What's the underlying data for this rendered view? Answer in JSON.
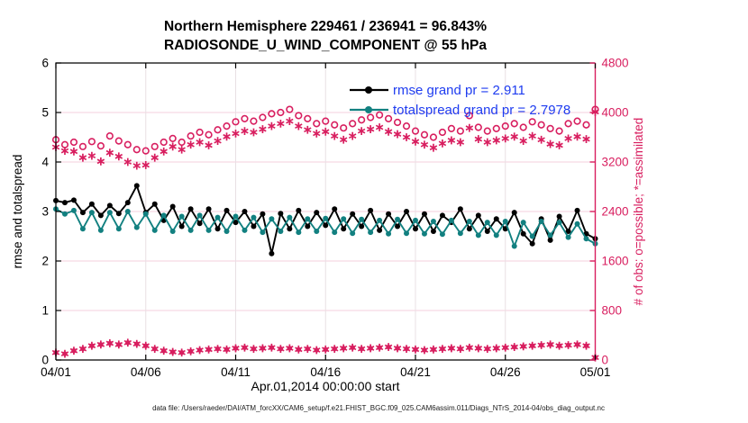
{
  "title": {
    "line1": "Northern Hemisphere 229461 / 236941 = 96.843%",
    "line2": "RADIOSONDE_U_WIND_COMPONENT @ 55 hPa"
  },
  "axes": {
    "x": {
      "label": "Apr.01,2014 00:00:00 start",
      "tick_labels": [
        "04/01",
        "04/06",
        "04/11",
        "04/16",
        "04/21",
        "04/26",
        "05/01"
      ],
      "tick_days": [
        0,
        5,
        10,
        15,
        20,
        25,
        30
      ],
      "range_days": [
        0,
        30
      ]
    },
    "y_left": {
      "label": "rmse and totalspread",
      "ticks": [
        0,
        1,
        2,
        3,
        4,
        5,
        6
      ],
      "range": [
        0,
        6
      ]
    },
    "y_right": {
      "label": "# of obs: o=possible; *=assimilated",
      "ticks": [
        0,
        800,
        1600,
        2400,
        3200,
        4000,
        4800
      ],
      "range": [
        0,
        4800
      ]
    }
  },
  "legend": [
    {
      "label": "rmse grand pr = 2.911",
      "color": "#000000"
    },
    {
      "label": "totalspread grand pr = 2.7978",
      "color": "#128080"
    }
  ],
  "footer": {
    "datafile": "data file: /Users/raeder/DAI/ATM_forcXX/CAM6_setup/f.e21.FHIST_BGC.f09_025.CAM6assim.011/Diags_NTrS_2014-04/obs_diag_output.nc"
  },
  "colors": {
    "rmse": "#000000",
    "totalspread": "#128080",
    "obs_pink": "#D81E5F",
    "legend_text": "#1E3CF0",
    "grid_h": "#F5CFDE",
    "grid_v": "#E9E0E4",
    "axis_black": "#000000",
    "tick_label_left": "#000000",
    "tick_label_right": "#D81E5F"
  },
  "chart_data": {
    "type": "line",
    "title_line1": "Northern Hemisphere 229461 / 236941 = 96.843%",
    "title_line2": "RADIOSONDE_U_WIND_COMPONENT @ 55 hPa",
    "xlabel": "Apr.01,2014 00:00:00 start",
    "ylabel_left": "rmse and totalspread",
    "ylabel_right": "# of obs: o=possible; *=assimilated",
    "x_range_days": [
      0,
      30
    ],
    "ylim_left": [
      0,
      6
    ],
    "ylim_right": [
      0,
      4800
    ],
    "grid": true,
    "legend_position": "upper-right-inside",
    "x_days": [
      0,
      0.5,
      1,
      1.5,
      2,
      2.5,
      3,
      3.5,
      4,
      4.5,
      5,
      5.5,
      6,
      6.5,
      7,
      7.5,
      8,
      8.5,
      9,
      9.5,
      10,
      10.5,
      11,
      11.5,
      12,
      12.5,
      13,
      13.5,
      14,
      14.5,
      15,
      15.5,
      16,
      16.5,
      17,
      17.5,
      18,
      18.5,
      19,
      19.5,
      20,
      20.5,
      21,
      21.5,
      22,
      22.5,
      23,
      23.5,
      24,
      24.5,
      25,
      25.5,
      26,
      26.5,
      27,
      27.5,
      28,
      28.5,
      29,
      29.5,
      30
    ],
    "series": [
      {
        "name": "rmse",
        "axis": "left",
        "line": true,
        "marker": "filled-circle",
        "color": "#000000",
        "grand_value": 2.911,
        "values": [
          3.22,
          3.18,
          3.23,
          2.98,
          3.15,
          2.92,
          3.12,
          2.96,
          3.18,
          3.52,
          2.98,
          3.15,
          2.82,
          3.1,
          2.7,
          3.05,
          2.76,
          3.05,
          2.65,
          3.02,
          2.78,
          3.0,
          2.7,
          2.95,
          2.15,
          2.96,
          2.65,
          3.02,
          2.7,
          2.98,
          2.72,
          3.05,
          2.65,
          2.95,
          2.7,
          3.02,
          2.62,
          2.95,
          2.7,
          3.0,
          2.65,
          2.95,
          2.6,
          2.92,
          2.78,
          3.05,
          2.65,
          2.92,
          2.6,
          2.85,
          2.65,
          2.98,
          2.55,
          2.35,
          2.85,
          2.42,
          2.9,
          2.6,
          3.02,
          2.55,
          2.45
        ]
      },
      {
        "name": "totalspread",
        "axis": "left",
        "line": true,
        "marker": "filled-circle",
        "color": "#128080",
        "grand_value": 2.7978,
        "values": [
          3.05,
          2.95,
          3.02,
          2.65,
          2.98,
          2.62,
          2.98,
          2.65,
          3.0,
          2.68,
          2.95,
          2.62,
          2.92,
          2.6,
          2.9,
          2.62,
          2.92,
          2.62,
          2.88,
          2.6,
          2.9,
          2.62,
          2.88,
          2.58,
          2.85,
          2.6,
          2.88,
          2.58,
          2.85,
          2.6,
          2.86,
          2.58,
          2.85,
          2.56,
          2.84,
          2.58,
          2.82,
          2.55,
          2.84,
          2.56,
          2.82,
          2.55,
          2.8,
          2.54,
          2.82,
          2.56,
          2.8,
          2.52,
          2.78,
          2.52,
          2.8,
          2.3,
          2.78,
          2.5,
          2.8,
          2.52,
          2.78,
          2.48,
          2.75,
          2.45,
          2.35
        ]
      },
      {
        "name": "num_obs_possible",
        "axis": "right",
        "line": false,
        "marker": "open-circle",
        "color": "#D81E5F",
        "values": [
          3560,
          3480,
          3520,
          3450,
          3530,
          3460,
          3620,
          3540,
          3480,
          3400,
          3380,
          3450,
          3520,
          3580,
          3520,
          3620,
          3680,
          3640,
          3720,
          3780,
          3850,
          3900,
          3860,
          3920,
          3980,
          4000,
          4050,
          3950,
          3900,
          3820,
          3860,
          3800,
          3750,
          3820,
          3880,
          3920,
          3960,
          3900,
          3840,
          3780,
          3700,
          3640,
          3600,
          3680,
          3740,
          3700,
          3950,
          3760,
          3700,
          3740,
          3780,
          3820,
          3760,
          3850,
          3800,
          3740,
          3700,
          3820,
          3860,
          3800,
          4050
        ]
      },
      {
        "name": "num_obs_assimilated",
        "axis": "right",
        "line": false,
        "marker": "asterisk",
        "color": "#D81E5F",
        "values": [
          3440,
          3380,
          3370,
          3270,
          3300,
          3210,
          3350,
          3290,
          3200,
          3140,
          3150,
          3270,
          3370,
          3450,
          3400,
          3480,
          3520,
          3470,
          3540,
          3610,
          3660,
          3700,
          3680,
          3730,
          3780,
          3820,
          3860,
          3780,
          3720,
          3660,
          3690,
          3620,
          3560,
          3620,
          3700,
          3730,
          3760,
          3690,
          3650,
          3600,
          3530,
          3480,
          3430,
          3500,
          3550,
          3520,
          3750,
          3570,
          3520,
          3550,
          3580,
          3610,
          3540,
          3620,
          3560,
          3490,
          3470,
          3580,
          3610,
          3570,
          4010
        ]
      },
      {
        "name": "low_band_count",
        "axis": "right",
        "line": false,
        "marker": "asterisk-circle",
        "color": "#D81E5F",
        "values": [
          120,
          100,
          150,
          180,
          230,
          250,
          270,
          250,
          280,
          260,
          230,
          180,
          150,
          130,
          120,
          140,
          160,
          170,
          180,
          170,
          190,
          200,
          180,
          190,
          200,
          180,
          190,
          170,
          180,
          160,
          170,
          180,
          190,
          200,
          180,
          190,
          200,
          210,
          190,
          180,
          170,
          160,
          170,
          180,
          190,
          180,
          200,
          190,
          180,
          190,
          200,
          210,
          220,
          230,
          240,
          250,
          230,
          240,
          250,
          230,
          40
        ]
      }
    ]
  }
}
